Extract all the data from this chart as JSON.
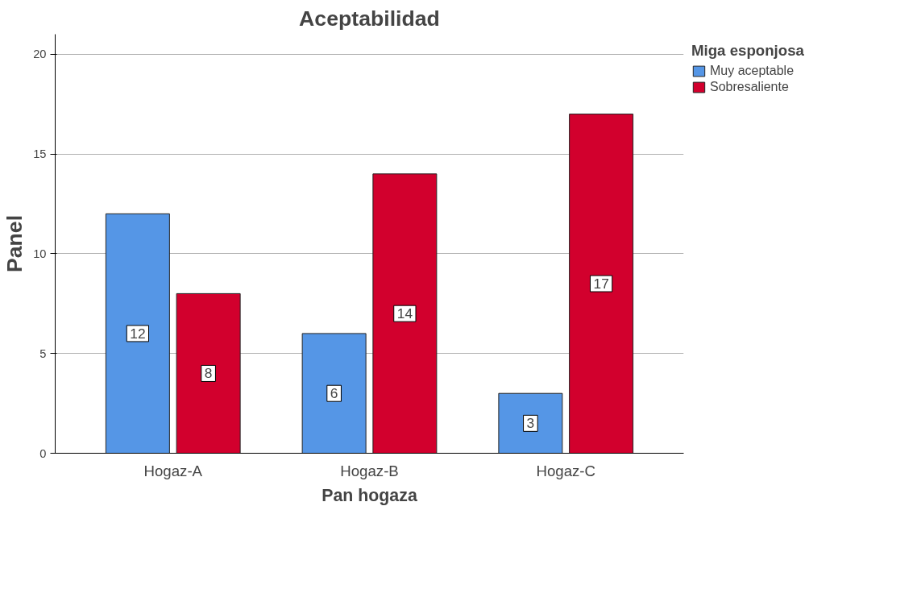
{
  "chart_data": {
    "type": "bar",
    "title": "Aceptabilidad",
    "xlabel": "Pan hogaza",
    "ylabel": "Panel",
    "legend_title": "Miga esponjosa",
    "categories": [
      "Hogaz-A",
      "Hogaz-B",
      "Hogaz-C"
    ],
    "series": [
      {
        "name": "Muy aceptable",
        "color": "#5596e6",
        "values": [
          12,
          6,
          3
        ]
      },
      {
        "name": "Sobresaliente",
        "color": "#d2002d",
        "values": [
          8,
          14,
          17
        ]
      }
    ],
    "ylim": [
      0,
      21
    ],
    "yticks": [
      0,
      5,
      10,
      15,
      20
    ],
    "grid": "y",
    "legend": "right",
    "data_labels": true
  }
}
